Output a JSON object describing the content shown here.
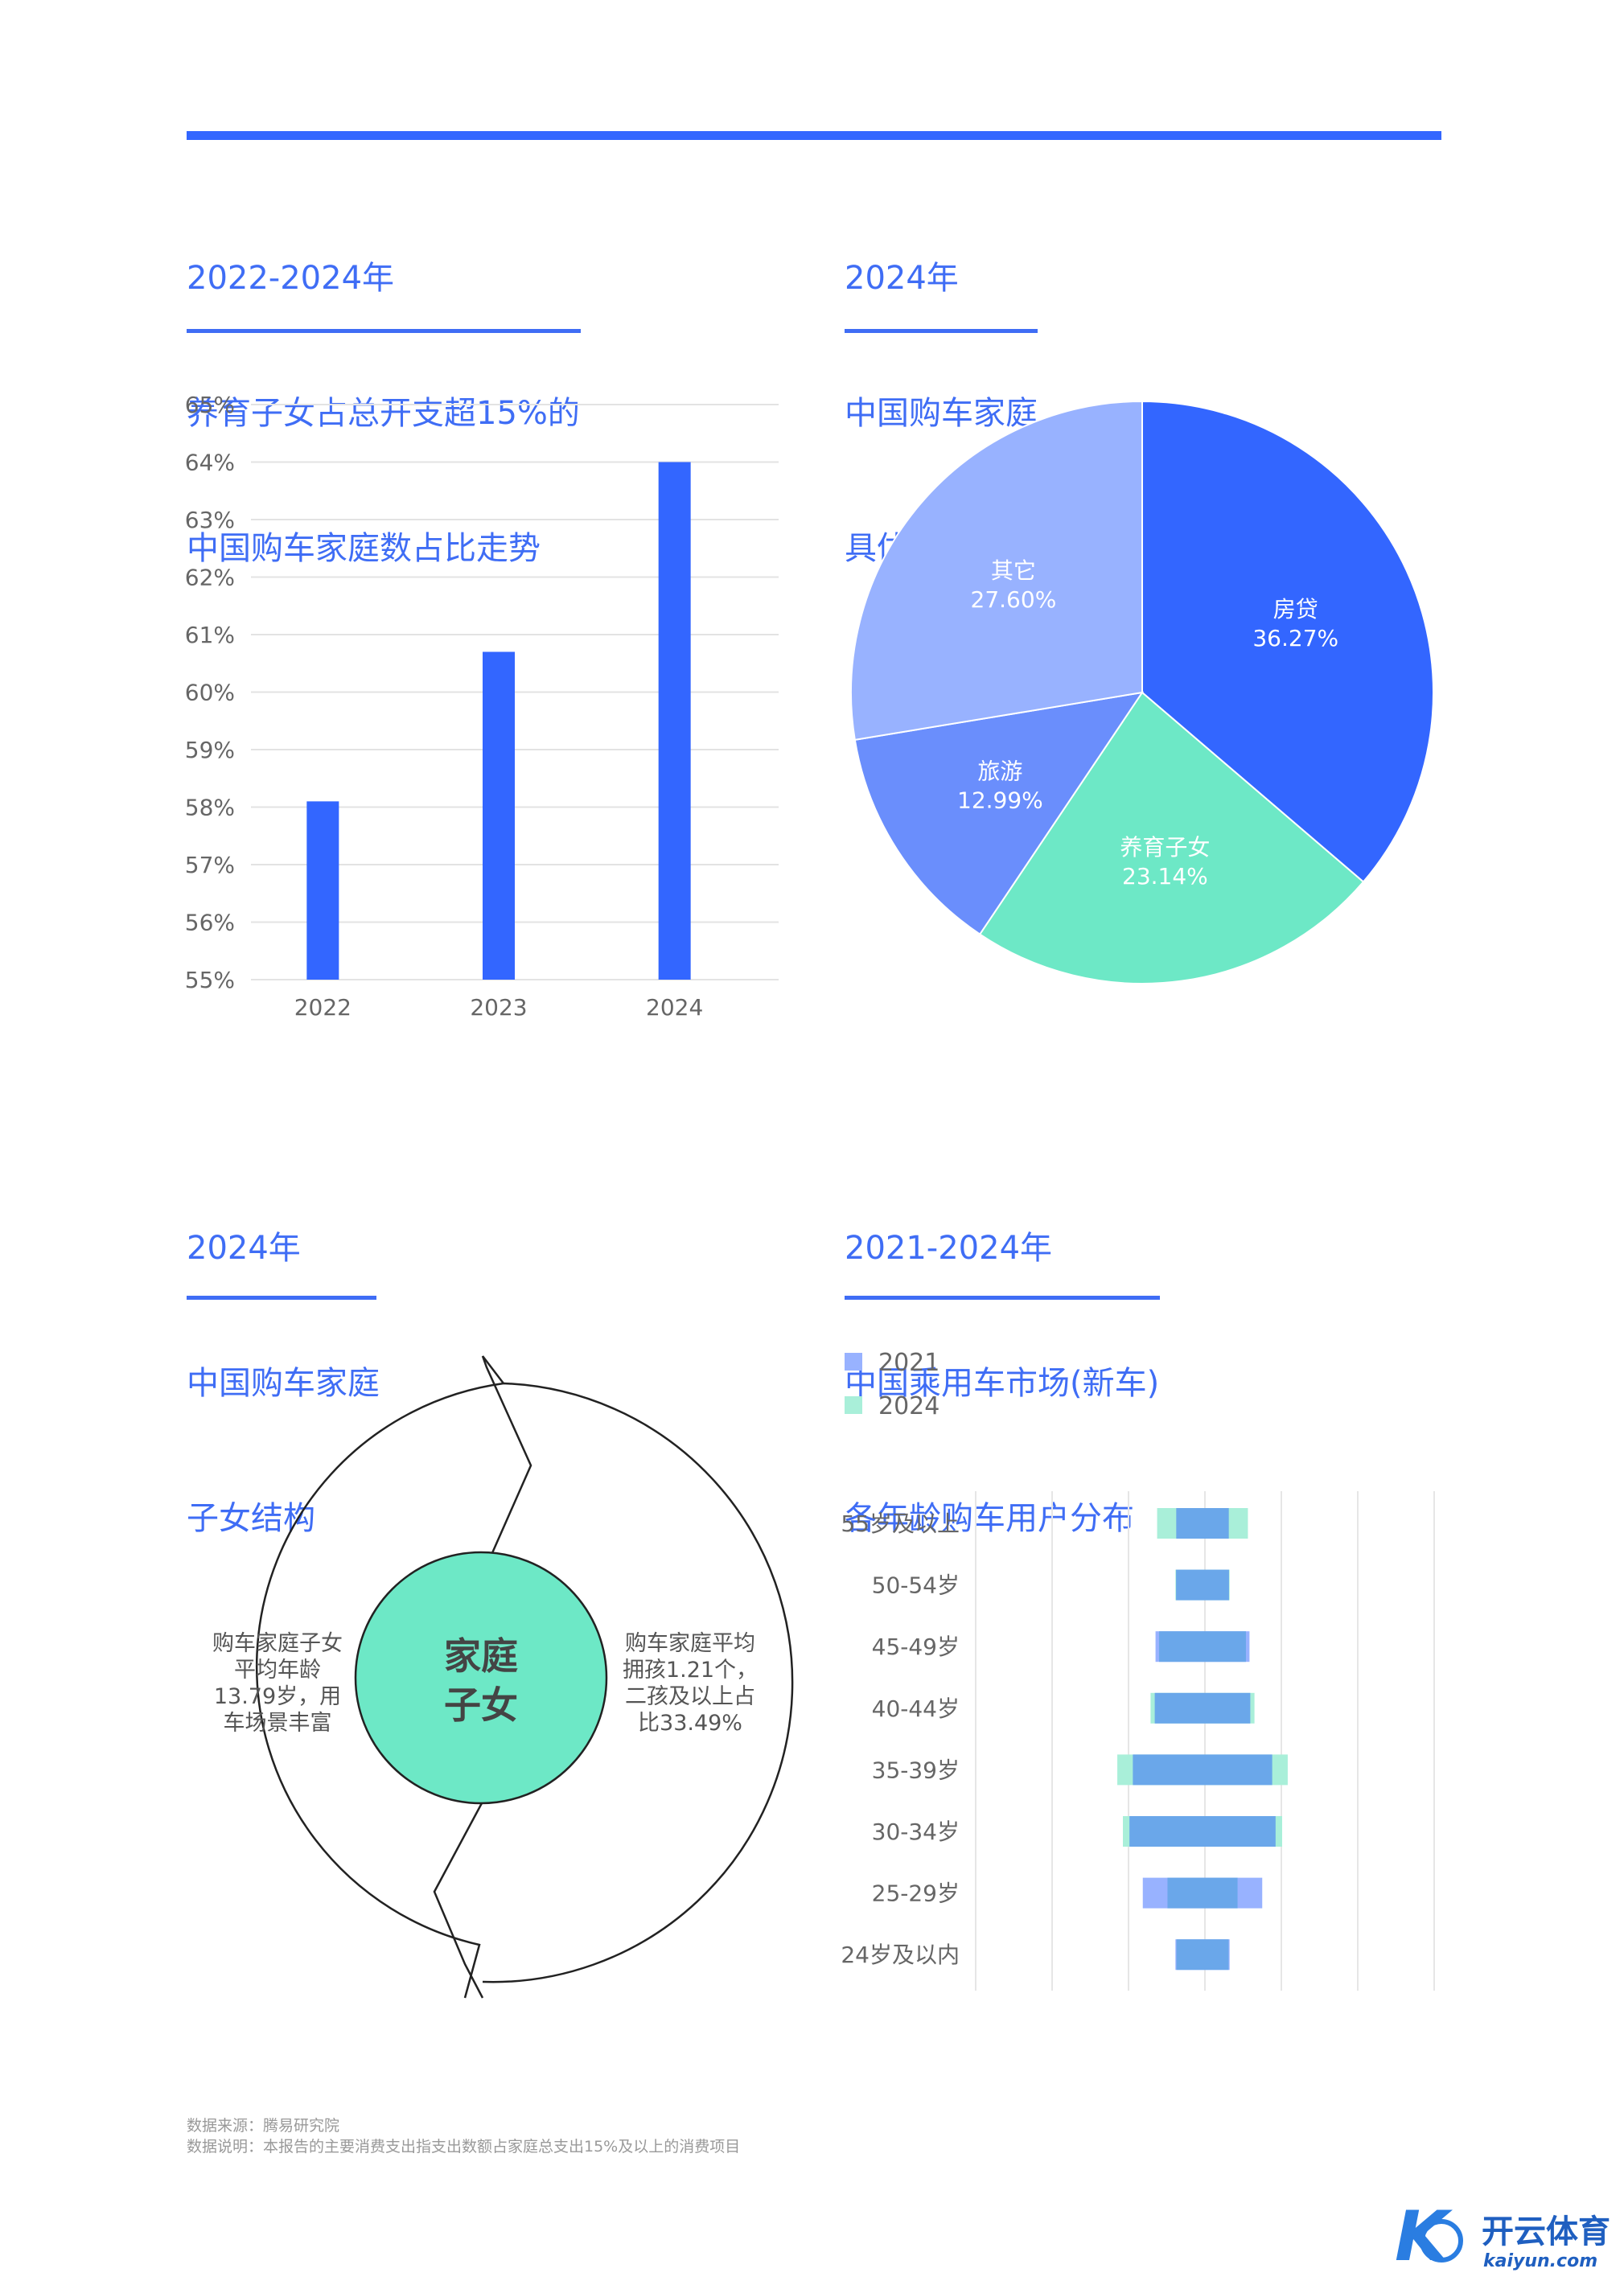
{
  "colors": {
    "accent": "#3366ff",
    "title": "#3f6df5",
    "green": "#6de8c6",
    "light_blue": "#98b2ff",
    "mid_blue": "#6a8efc"
  },
  "titles": {
    "bar": [
      "2022-2024年",
      "养育子女占总开支超15%的",
      "中国购车家庭数占比走势"
    ],
    "pie": [
      "2024年",
      "中国购车家庭",
      "具体开支分布"
    ],
    "family": [
      "2024年",
      "中国购车家庭",
      "子女结构"
    ],
    "age": [
      "2021-2024年",
      "中国乘用车市场(新车)",
      "各年龄购车用户分布"
    ]
  },
  "family": {
    "center_label": [
      "家庭",
      "子女"
    ],
    "left_text": [
      "购车家庭子女",
      "平均年龄",
      "13.79岁，用",
      "车场景丰富"
    ],
    "right_text": [
      "购车家庭平均",
      "拥孩1.21个，",
      "二孩及以上占",
      "比33.49%"
    ]
  },
  "chart_data": [
    {
      "type": "bar",
      "title": "2022-2024年 养育子女占总开支超15%的 中国购车家庭数占比走势",
      "categories": [
        "2022",
        "2023",
        "2024"
      ],
      "values": [
        58.1,
        60.7,
        64.0
      ],
      "ylim": [
        55,
        65
      ],
      "yticks": [
        "55%",
        "56%",
        "57%",
        "58%",
        "59%",
        "60%",
        "61%",
        "62%",
        "63%",
        "64%",
        "65%"
      ],
      "grid": true,
      "color": "#3366ff"
    },
    {
      "type": "pie",
      "title": "2024年 中国购车家庭 具体开支分布",
      "slices": [
        {
          "label": "房贷",
          "value": 36.27,
          "text": "36.27%",
          "color": "#3366ff"
        },
        {
          "label": "养育子女",
          "value": 23.14,
          "text": "23.14%",
          "color": "#6de8c6"
        },
        {
          "label": "旅游",
          "value": 12.99,
          "text": "12.99%",
          "color": "#6a8efc"
        },
        {
          "label": "其它",
          "value": 27.6,
          "text": "27.60%",
          "color": "#98b2ff"
        }
      ]
    },
    {
      "type": "bar",
      "title": "2021-2024年 中国乘用车市场(新车) 各年龄购车用户分布",
      "orientation": "horizontal-centered",
      "legend": [
        {
          "name": "2021",
          "color": "#98b2ff"
        },
        {
          "name": "2024",
          "color": "#a9efd9"
        }
      ],
      "legend_position": "top-left",
      "categories": [
        "55岁及以上",
        "50-54岁",
        "45-49岁",
        "40-44岁",
        "35-39岁",
        "30-34岁",
        "25-29岁",
        "24岁及以内"
      ],
      "series": [
        {
          "name": "2021",
          "values": [
            13.2,
            13.3,
            23.6,
            24.0,
            35.0,
            36.7,
            30.0,
            13.6
          ]
        },
        {
          "name": "2024",
          "values": [
            22.8,
            13.6,
            21.8,
            26.1,
            42.8,
            40.0,
            17.6,
            13.1
          ]
        }
      ],
      "grid": true
    }
  ],
  "footer": {
    "source": "数据来源：腾易研究院",
    "note": "数据说明：本报告的主要消费支出指支出数额占家庭总支出15%及以上的消费项目"
  },
  "logo": {
    "brand": "开云体育",
    "domain": "kaiyun.com",
    "mark": "K"
  }
}
